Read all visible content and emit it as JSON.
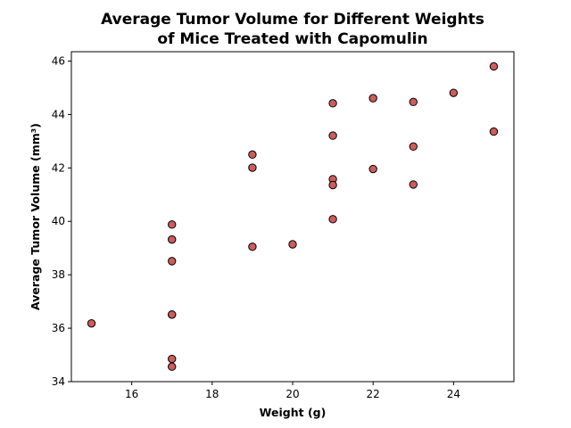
{
  "chart_data": {
    "type": "scatter",
    "title_lines": [
      "Average Tumor Volume for Different Weights",
      "of Mice Treated with Capomulin"
    ],
    "xlabel": "Weight (g)",
    "ylabel": "Average Tumor Volume (mm³)",
    "xlim": [
      14.5,
      25.5
    ],
    "ylim": [
      34,
      46.35
    ],
    "x_ticks": [
      16,
      18,
      20,
      22,
      24
    ],
    "y_ticks": [
      34,
      36,
      38,
      40,
      42,
      44,
      46
    ],
    "grid": false,
    "marker_color": "#cd5c5c",
    "marker_edge_color": "#000000",
    "points": [
      {
        "x": 15,
        "y": 36.18
      },
      {
        "x": 17,
        "y": 39.88
      },
      {
        "x": 17,
        "y": 39.32
      },
      {
        "x": 17,
        "y": 38.51
      },
      {
        "x": 17,
        "y": 36.51
      },
      {
        "x": 17,
        "y": 36.51
      },
      {
        "x": 17,
        "y": 34.85
      },
      {
        "x": 17,
        "y": 34.56
      },
      {
        "x": 19,
        "y": 42.5
      },
      {
        "x": 19,
        "y": 42.01
      },
      {
        "x": 19,
        "y": 39.05
      },
      {
        "x": 20,
        "y": 39.14
      },
      {
        "x": 21,
        "y": 44.42
      },
      {
        "x": 21,
        "y": 43.21
      },
      {
        "x": 21,
        "y": 41.58
      },
      {
        "x": 21,
        "y": 41.36
      },
      {
        "x": 21,
        "y": 40.08
      },
      {
        "x": 22,
        "y": 44.61
      },
      {
        "x": 22,
        "y": 41.96
      },
      {
        "x": 23,
        "y": 44.47
      },
      {
        "x": 23,
        "y": 42.8
      },
      {
        "x": 23,
        "y": 41.38
      },
      {
        "x": 24,
        "y": 44.81
      },
      {
        "x": 25,
        "y": 45.8
      },
      {
        "x": 25,
        "y": 43.36
      }
    ]
  }
}
